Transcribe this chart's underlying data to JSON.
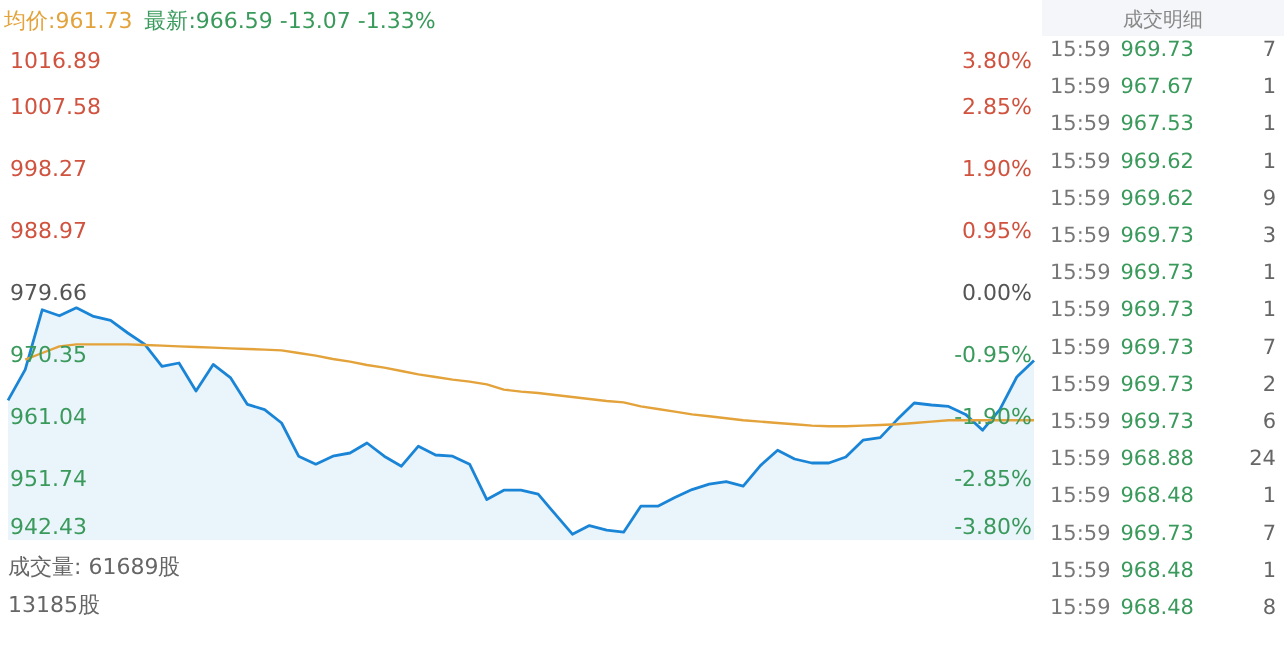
{
  "chart_data": [
    {
      "type": "area",
      "title": "均价:961.73",
      "subtitle": "最新:966.59 -13.07 -1.33%",
      "categories": [
        null,
        null,
        null,
        null,
        null,
        null,
        null,
        null,
        null,
        null,
        null,
        null,
        null,
        null,
        null,
        null,
        null,
        null,
        null,
        null,
        null,
        null,
        null,
        null,
        null,
        null,
        null,
        null,
        null,
        null,
        null,
        null,
        null,
        null,
        null,
        null,
        null,
        null,
        null,
        null,
        null,
        null,
        null,
        null,
        null,
        null,
        null,
        null,
        null,
        null,
        null,
        null,
        null,
        null,
        null,
        null,
        null,
        null,
        null,
        null,
        null
      ],
      "ylim": [
        942.43,
        1016.89
      ],
      "yticks": [
        942.43,
        951.74,
        961.04,
        970.35,
        979.66,
        988.97,
        998.27,
        1007.58,
        1016.89
      ],
      "y2lim": [
        -3.8,
        3.8
      ],
      "y2ticks": [
        {
          "value": -3.8,
          "label": "-3.80%"
        },
        {
          "value": -2.85,
          "label": "-2.85%"
        },
        {
          "value": -1.9,
          "label": "-1.90%"
        },
        {
          "value": -0.95,
          "label": "-0.95%"
        },
        {
          "value": 0,
          "label": "0.00%"
        },
        {
          "value": 0.95,
          "label": "0.95%"
        },
        {
          "value": 1.9,
          "label": "1.90%"
        },
        {
          "value": 2.85,
          "label": "2.85%"
        },
        {
          "value": 3.8,
          "label": "3.80%"
        }
      ],
      "tick_labels": "y",
      "series": [
        {
          "type": "area",
          "color": "#1a85d6",
          "values": [
            963.4,
            968.0,
            977.0,
            976.1,
            977.3,
            976.0,
            975.4,
            973.5,
            971.8,
            968.5,
            969.0,
            964.8,
            968.8,
            966.8,
            962.8,
            962.0,
            960.0,
            955.0,
            953.8,
            955.0,
            955.5,
            957.0,
            955.0,
            953.5,
            956.5,
            955.2,
            955.0,
            953.8,
            948.5,
            949.9,
            949.9,
            949.3,
            946.3,
            943.3,
            944.6,
            943.9,
            943.6,
            947.5,
            947.5,
            948.8,
            950.0,
            950.8,
            951.2,
            950.5,
            953.6,
            955.9,
            954.6,
            954.0,
            954.0,
            954.9,
            957.4,
            957.8,
            960.5,
            963.0,
            962.7,
            962.5,
            961.3,
            958.9,
            962.0,
            966.9,
            969.4
          ]
        },
        {
          "type": "line",
          "color": "#e3a23a",
          "values": [
            null,
            969.5,
            970.5,
            971.5,
            971.8,
            971.8,
            971.8,
            971.8,
            971.7,
            971.6,
            971.5,
            971.4,
            971.3,
            971.2,
            971.1,
            971.0,
            970.9,
            970.5,
            970.1,
            969.6,
            969.2,
            968.7,
            968.3,
            967.8,
            967.3,
            966.9,
            966.5,
            966.2,
            965.8,
            965.0,
            964.7,
            964.5,
            964.2,
            963.9,
            963.6,
            963.3,
            963.1,
            962.5,
            962.1,
            961.7,
            961.3,
            961.0,
            960.7,
            960.4,
            960.2,
            960.0,
            959.8,
            959.6,
            959.5,
            959.5,
            959.6,
            959.7,
            959.8,
            960.0,
            960.2,
            960.4,
            960.4,
            960.4,
            960.4,
            960.4,
            960.4
          ]
        }
      ],
      "annotations": [
        "成交量: 61689股",
        "13185股"
      ]
    },
    {
      "type": "other",
      "title": "成交明细",
      "annotations": [
        "15:59",
        "969.73",
        "7",
        "15:59",
        "967.67",
        "1",
        "15:59",
        "967.53",
        "1",
        "15:59",
        "969.62",
        "1",
        "15:59",
        "969.62",
        "9",
        "15:59",
        "969.73",
        "3",
        "15:59",
        "969.73",
        "1",
        "15:59",
        "969.73",
        "1",
        "15:59",
        "969.73",
        "7",
        "15:59",
        "969.73",
        "2",
        "15:59",
        "969.73",
        "6",
        "15:59",
        "968.88",
        "24",
        "15:59",
        "968.48",
        "1",
        "15:59",
        "969.73",
        "7",
        "15:59",
        "968.48",
        "1",
        "15:59",
        "968.48",
        "8"
      ]
    }
  ]
}
